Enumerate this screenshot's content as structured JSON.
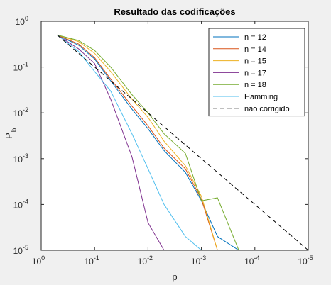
{
  "chart_data": {
    "type": "line",
    "title": "Resultado das codificações",
    "xlabel": "p",
    "ylabel": "P",
    "ylabel_sub": "b",
    "xscale": "log",
    "yscale": "log",
    "x_reversed": true,
    "xlim": [
      1,
      1e-05
    ],
    "ylim": [
      1e-05,
      1
    ],
    "grid": false,
    "legend_position": "top-right",
    "xticks": [
      {
        "value": 1,
        "base": "10",
        "exp": "0"
      },
      {
        "value": 0.1,
        "base": "10",
        "exp": "-1"
      },
      {
        "value": 0.01,
        "base": "10",
        "exp": "-2"
      },
      {
        "value": 0.001,
        "base": "10",
        "exp": "-3"
      },
      {
        "value": 0.0001,
        "base": "10",
        "exp": "-4"
      },
      {
        "value": 1e-05,
        "base": "10",
        "exp": "-5"
      }
    ],
    "yticks": [
      {
        "value": 1,
        "base": "10",
        "exp": "0"
      },
      {
        "value": 0.1,
        "base": "10",
        "exp": "-1"
      },
      {
        "value": 0.01,
        "base": "10",
        "exp": "-2"
      },
      {
        "value": 0.001,
        "base": "10",
        "exp": "-3"
      },
      {
        "value": 0.0001,
        "base": "10",
        "exp": "-4"
      },
      {
        "value": 1e-05,
        "base": "10",
        "exp": "-5"
      }
    ],
    "x": [
      0.5,
      0.2,
      0.1,
      0.05,
      0.02,
      0.01,
      0.005,
      0.002,
      0.001,
      0.0005,
      0.0002,
      0.0001,
      5e-05,
      2e-05,
      1e-05
    ],
    "series": [
      {
        "name": "n = 12",
        "color": "#0072bd",
        "dash": false,
        "values": [
          0.5,
          0.3,
          0.15,
          0.05,
          0.012,
          0.0045,
          0.0015,
          0.0005,
          0.00012,
          2e-05,
          1e-05,
          1e-05,
          1e-05,
          1e-05,
          1e-05
        ]
      },
      {
        "name": "n = 14",
        "color": "#d95319",
        "dash": false,
        "values": [
          0.5,
          0.32,
          0.16,
          0.055,
          0.014,
          0.0052,
          0.0017,
          0.0006,
          0.00013,
          1e-05,
          1e-05,
          1e-05,
          1e-05,
          1e-05,
          1e-05
        ]
      },
      {
        "name": "n = 15",
        "color": "#edb120",
        "dash": false,
        "values": [
          0.5,
          0.36,
          0.2,
          0.08,
          0.02,
          0.008,
          0.0024,
          0.0007,
          0.00015,
          1e-05,
          1e-05,
          1e-05,
          1e-05,
          1e-05,
          1e-05
        ]
      },
      {
        "name": "n = 17",
        "color": "#7e2f8e",
        "dash": false,
        "values": [
          0.5,
          0.25,
          0.12,
          0.02,
          0.0011,
          4e-05,
          1e-05,
          1e-05,
          1e-05,
          1e-05,
          1e-05,
          1e-05,
          1e-05,
          1e-05,
          1e-05
        ]
      },
      {
        "name": "n = 18",
        "color": "#77ac30",
        "dash": false,
        "values": [
          0.5,
          0.38,
          0.23,
          0.1,
          0.025,
          0.01,
          0.0035,
          0.0013,
          0.00012,
          0.00014,
          1e-05,
          1e-05,
          1e-05,
          1e-05,
          1e-05
        ]
      },
      {
        "name": "Hamming",
        "color": "#4dbeee",
        "dash": false,
        "values": [
          0.5,
          0.22,
          0.08,
          0.03,
          0.0035,
          0.0006,
          0.0001,
          2e-05,
          1e-05,
          1e-05,
          1e-05,
          1e-05,
          1e-05,
          1e-05,
          1e-05
        ]
      },
      {
        "name": "nao corrigido",
        "color": "#000000",
        "dash": true,
        "values": [
          0.5,
          0.2,
          0.1,
          0.05,
          0.02,
          0.01,
          0.005,
          0.002,
          0.001,
          0.0005,
          0.0002,
          0.0001,
          5e-05,
          2e-05,
          1e-05
        ]
      }
    ]
  }
}
